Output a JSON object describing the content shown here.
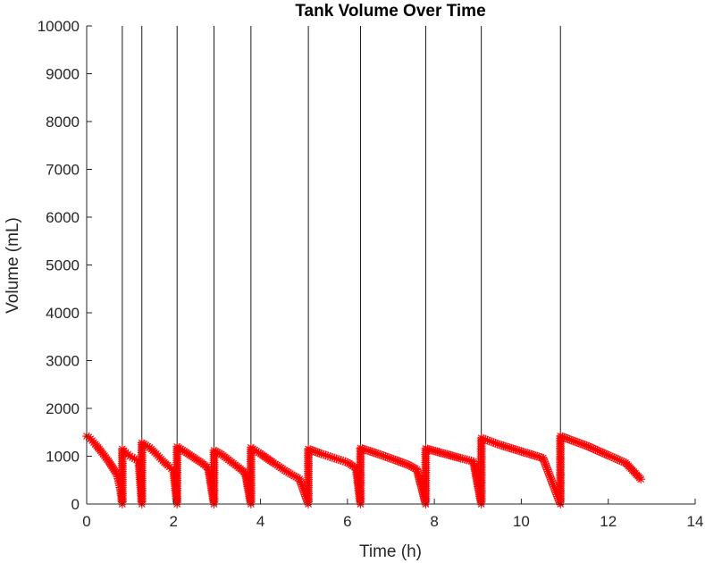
{
  "chart_data": {
    "type": "scatter",
    "title": "Tank Volume Over Time",
    "xlabel": "Time (h)",
    "ylabel": "Volume (mL)",
    "xlim": [
      0,
      14
    ],
    "ylim": [
      0,
      10000
    ],
    "xticks": [
      0,
      2,
      4,
      6,
      8,
      10,
      12,
      14
    ],
    "yticks": [
      0,
      1000,
      2000,
      3000,
      4000,
      5000,
      6000,
      7000,
      8000,
      9000,
      10000
    ],
    "grid": false,
    "legend": "none",
    "marker": "asterisk",
    "color": "#ff0000",
    "event_times": [
      0.82,
      1.27,
      2.08,
      2.93,
      3.78,
      5.1,
      6.3,
      7.8,
      9.08,
      10.9
    ],
    "series": [
      {
        "x": [
          0,
          0.05,
          0.2,
          0.35,
          0.5,
          0.6,
          0.7,
          0.78,
          0.82,
          0.82,
          0.9,
          1.0,
          1.1,
          1.2,
          1.27,
          1.27,
          1.45,
          1.6,
          1.75,
          1.9,
          2.0,
          2.08,
          2.08,
          2.25,
          2.45,
          2.65,
          2.8,
          2.93,
          2.93,
          3.1,
          3.3,
          3.5,
          3.65,
          3.78,
          3.78,
          4.0,
          4.3,
          4.6,
          4.9,
          5.1,
          5.1,
          5.4,
          5.7,
          6.0,
          6.2,
          6.3,
          6.3,
          6.7,
          7.1,
          7.4,
          7.6,
          7.8,
          7.8,
          8.2,
          8.6,
          8.9,
          9.08,
          9.08,
          9.5,
          10.0,
          10.5,
          10.9,
          10.9,
          11.5,
          12.0,
          12.4,
          12.75
        ],
        "y": [
          1420,
          1400,
          1250,
          1080,
          900,
          760,
          620,
          300,
          0,
          1150,
          1080,
          1000,
          950,
          900,
          0,
          1280,
          1180,
          1050,
          900,
          780,
          700,
          0,
          1200,
          1100,
          980,
          860,
          750,
          0,
          1120,
          1040,
          900,
          760,
          650,
          0,
          1180,
          1050,
          860,
          680,
          520,
          0,
          1150,
          1050,
          960,
          870,
          750,
          0,
          1170,
          1050,
          920,
          820,
          720,
          0,
          1160,
          1060,
          960,
          890,
          0,
          1380,
          1240,
          1100,
          960,
          0,
          1420,
          1220,
          1020,
          860,
          520
        ]
      }
    ]
  }
}
